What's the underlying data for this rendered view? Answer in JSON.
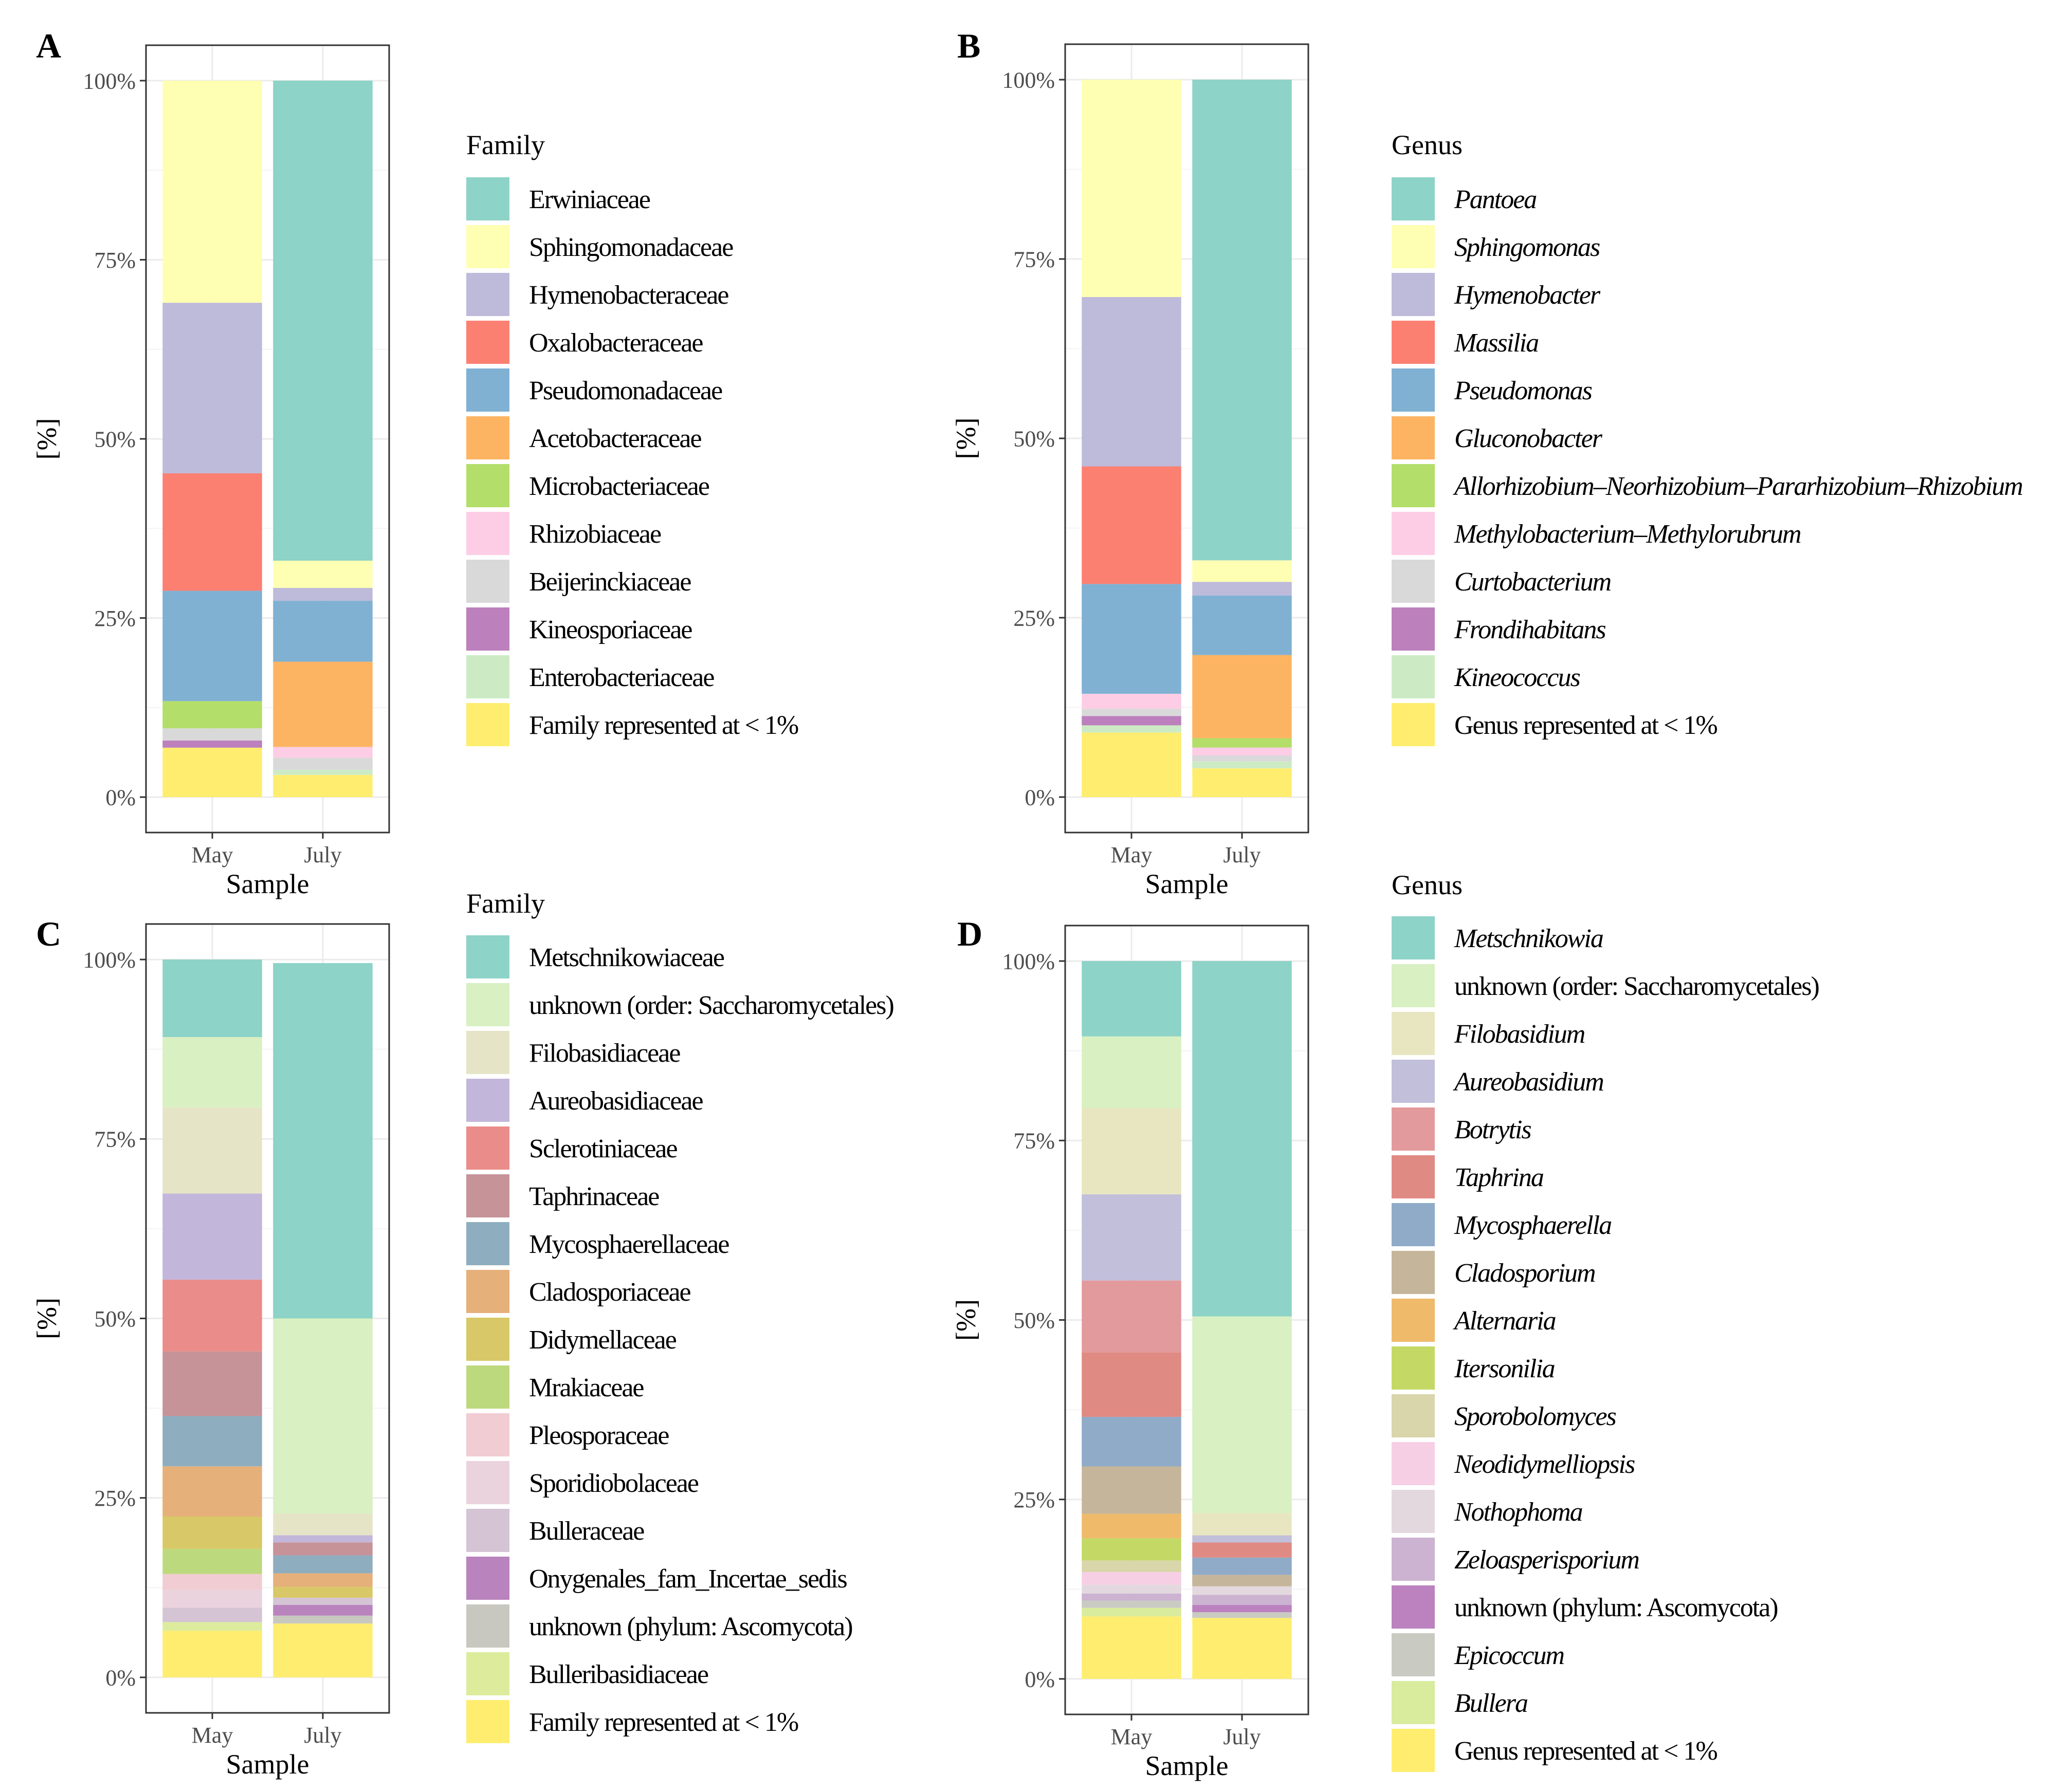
{
  "chart_data": [
    {
      "panel": "A",
      "type": "bar",
      "stacked": true,
      "ylabel": "[%]",
      "xlabel": "Sample",
      "ylim": [
        0,
        100
      ],
      "yticks": [
        "0%",
        "25%",
        "50%",
        "75%",
        "100%"
      ],
      "categories": [
        "May",
        "July"
      ],
      "legend_title": "Family",
      "italic_legend": false,
      "series": [
        {
          "name": "Erwiniaceae",
          "color": "#8dd3c7",
          "values": [
            0.0,
            67.0
          ]
        },
        {
          "name": "Sphingomonadaceae",
          "color": "#ffffb3",
          "values": [
            31.0,
            3.8
          ]
        },
        {
          "name": "Hymenobacteraceae",
          "color": "#bebada",
          "values": [
            23.8,
            1.8
          ]
        },
        {
          "name": "Oxalobacteraceae",
          "color": "#fb8072",
          "values": [
            16.4,
            0.0
          ]
        },
        {
          "name": "Pseudomonadaceae",
          "color": "#80b1d3",
          "values": [
            15.4,
            8.5
          ]
        },
        {
          "name": "Acetobacteraceae",
          "color": "#fdb462",
          "values": [
            0.0,
            11.9
          ]
        },
        {
          "name": "Microbacteriaceae",
          "color": "#b3de69",
          "values": [
            3.8,
            0.0
          ]
        },
        {
          "name": "Rhizobiaceae",
          "color": "#fccde5",
          "values": [
            0.0,
            1.5
          ]
        },
        {
          "name": "Beijerinckiaceae",
          "color": "#d9d9d9",
          "values": [
            1.7,
            1.7
          ]
        },
        {
          "name": "Kineosporiaceae",
          "color": "#bc80bd",
          "values": [
            1.0,
            0.0
          ]
        },
        {
          "name": "Enterobacteriaceae",
          "color": "#ccebc5",
          "values": [
            0.0,
            0.7
          ]
        },
        {
          "name": "Family represented at < 1%",
          "color": "#ffed6f",
          "values": [
            6.9,
            3.1
          ]
        }
      ]
    },
    {
      "panel": "B",
      "type": "bar",
      "stacked": true,
      "ylabel": "[%]",
      "xlabel": "Sample",
      "ylim": [
        0,
        100
      ],
      "yticks": [
        "0%",
        "25%",
        "50%",
        "75%",
        "100%"
      ],
      "categories": [
        "May",
        "July"
      ],
      "legend_title": "Genus",
      "italic_legend": true,
      "series": [
        {
          "name": "Pantoea",
          "color": "#8dd3c7",
          "values": [
            0.0,
            67.0
          ]
        },
        {
          "name": "Sphingomonas",
          "color": "#ffffb3",
          "values": [
            30.3,
            3.0
          ]
        },
        {
          "name": "Hymenobacter",
          "color": "#bebada",
          "values": [
            23.6,
            1.9
          ]
        },
        {
          "name": "Massilia",
          "color": "#fb8072",
          "values": [
            16.4,
            0.0
          ]
        },
        {
          "name": "Pseudomonas",
          "color": "#80b1d3",
          "values": [
            15.3,
            8.3
          ]
        },
        {
          "name": "Gluconobacter",
          "color": "#fdb462",
          "values": [
            0.0,
            11.6
          ]
        },
        {
          "name": "Allorhizobium–Neorhizobium–Pararhizobium–Rhizobium",
          "color": "#b3de69",
          "values": [
            0.0,
            1.3
          ]
        },
        {
          "name": "Methylobacterium–Methylorubrum",
          "color": "#fccde5",
          "values": [
            2.1,
            1.1
          ]
        },
        {
          "name": "Curtobacterium",
          "color": "#d9d9d9",
          "values": [
            1.0,
            0.8
          ]
        },
        {
          "name": "Frondihabitans",
          "color": "#bc80bd",
          "values": [
            1.3,
            0.0
          ]
        },
        {
          "name": "Kineococcus",
          "color": "#ccebc5",
          "values": [
            1.0,
            1.0
          ]
        },
        {
          "name": "Genus represented at < 1%",
          "color": "#ffed6f",
          "values": [
            9.0,
            4.0
          ]
        }
      ]
    },
    {
      "panel": "C",
      "type": "bar",
      "stacked": true,
      "ylabel": "[%]",
      "xlabel": "Sample",
      "ylim": [
        0,
        100
      ],
      "yticks": [
        "0%",
        "25%",
        "50%",
        "75%",
        "100%"
      ],
      "categories": [
        "May",
        "July"
      ],
      "legend_title": "Family",
      "italic_legend": false,
      "series": [
        {
          "name": "Metschnikowiaceae",
          "color": "#8dd3c7",
          "values": [
            10.8,
            49.5
          ]
        },
        {
          "name": "unknown (order: Saccharomycetales)",
          "color": "#d9f0c2",
          "values": [
            9.8,
            27.2
          ]
        },
        {
          "name": "Filobasidiaceae",
          "color": "#e6e4c6",
          "values": [
            12.0,
            3.0
          ]
        },
        {
          "name": "Aureobasidiaceae",
          "color": "#c2b7da",
          "values": [
            12.0,
            1.0
          ]
        },
        {
          "name": "Sclerotiniaceae",
          "color": "#ea8c89",
          "values": [
            10.0,
            0.0
          ]
        },
        {
          "name": "Taphrinaceae",
          "color": "#c69398",
          "values": [
            9.0,
            1.8
          ]
        },
        {
          "name": "Mycosphaerellaceae",
          "color": "#8eaebf",
          "values": [
            7.0,
            2.5
          ]
        },
        {
          "name": "Cladosporiaceae",
          "color": "#e5b07a",
          "values": [
            7.0,
            1.9
          ]
        },
        {
          "name": "Didymellaceae",
          "color": "#d8c867",
          "values": [
            4.5,
            1.5
          ]
        },
        {
          "name": "Mrakiaceae",
          "color": "#bdd97e",
          "values": [
            3.5,
            0.0
          ]
        },
        {
          "name": "Pleosporaceae",
          "color": "#f2ccd3",
          "values": [
            2.2,
            0.0
          ]
        },
        {
          "name": "Sporidiobolaceae",
          "color": "#ead3dd",
          "values": [
            2.5,
            0.0
          ]
        },
        {
          "name": "Bulleraceae",
          "color": "#d4c4d4",
          "values": [
            2.0,
            1.0
          ]
        },
        {
          "name": "Onygenales_fam_Incertae_sedis",
          "color": "#b983bd",
          "values": [
            0.0,
            1.5
          ]
        },
        {
          "name": "unknown (phylum: Ascomycota)",
          "color": "#c8c8c0",
          "values": [
            0.0,
            1.1
          ]
        },
        {
          "name": "Bulleribasidiaceae",
          "color": "#dcec9c",
          "values": [
            1.2,
            0.0
          ]
        },
        {
          "name": "Family represented at < 1%",
          "color": "#ffed6f",
          "values": [
            6.5,
            7.5
          ]
        }
      ]
    },
    {
      "panel": "D",
      "type": "bar",
      "stacked": true,
      "ylabel": "[%]",
      "xlabel": "Sample",
      "ylim": [
        0,
        100
      ],
      "yticks": [
        "0%",
        "25%",
        "50%",
        "75%",
        "100%"
      ],
      "categories": [
        "May",
        "July"
      ],
      "legend_title": "Genus",
      "italic_legend": true,
      "plain_legend_items": [
        "unknown (order: Saccharomycetales)",
        "unknown (phylum: Ascomycota)",
        "Genus represented at < 1%"
      ],
      "series": [
        {
          "name": "Metschnikowia",
          "color": "#8dd3c7",
          "values": [
            10.5,
            49.5
          ]
        },
        {
          "name": "unknown (order: Saccharomycetales)",
          "color": "#d9f0c2",
          "values": [
            10.0,
            27.4
          ]
        },
        {
          "name": "Filobasidium",
          "color": "#e8e6c0",
          "values": [
            12.0,
            3.1
          ]
        },
        {
          "name": "Aureobasidium",
          "color": "#c2bfda",
          "values": [
            12.0,
            1.0
          ]
        },
        {
          "name": "Botrytis",
          "color": "#e39a9c",
          "values": [
            10.0,
            0.0
          ]
        },
        {
          "name": "Taphrina",
          "color": "#e08a84",
          "values": [
            9.0,
            2.1
          ]
        },
        {
          "name": "Mycosphaerella",
          "color": "#8fabc7",
          "values": [
            6.9,
            2.4
          ]
        },
        {
          "name": "Cladosporium",
          "color": "#c5b59a",
          "values": [
            6.6,
            1.6
          ]
        },
        {
          "name": "Alternaria",
          "color": "#efba6a",
          "values": [
            3.4,
            0.0
          ]
        },
        {
          "name": "Itersonilia",
          "color": "#c4d965",
          "values": [
            3.1,
            0.0
          ]
        },
        {
          "name": "Sporobolomyces",
          "color": "#d8d6aa",
          "values": [
            1.6,
            0.0
          ]
        },
        {
          "name": "Neodidymelliopsis",
          "color": "#f6cfe4",
          "values": [
            1.8,
            0.0
          ]
        },
        {
          "name": "Nothophoma",
          "color": "#e3d8de",
          "values": [
            1.2,
            1.2
          ]
        },
        {
          "name": "Zeloasperisporium",
          "color": "#cbb3d1",
          "values": [
            1.0,
            1.4
          ]
        },
        {
          "name": "unknown (phylum: Ascomycota)",
          "color": "#bb82bf",
          "values": [
            0.0,
            1.0
          ]
        },
        {
          "name": "Epicoccum",
          "color": "#c9cbc3",
          "values": [
            1.0,
            0.8
          ]
        },
        {
          "name": "Bullera",
          "color": "#d9eb9d",
          "values": [
            1.2,
            0.0
          ]
        },
        {
          "name": "Genus represented at < 1%",
          "color": "#ffed6f",
          "values": [
            8.7,
            8.5
          ]
        }
      ]
    }
  ]
}
